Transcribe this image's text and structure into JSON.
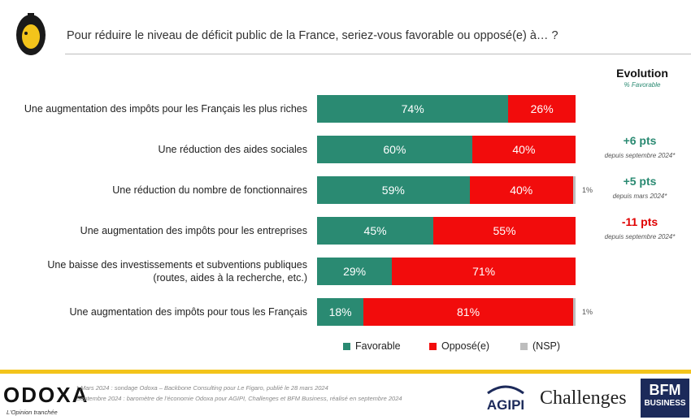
{
  "header": {
    "question": "Pour réduire le niveau de déficit public de la France, seriez-vous favorable ou opposé(e) à… ?"
  },
  "evolution": {
    "title": "Evolution",
    "subtitle": "% Favorable"
  },
  "chart_data": {
    "type": "bar",
    "orientation": "horizontal",
    "stacked": true,
    "categories": [
      "Une augmentation des impôts pour les Français les plus riches",
      "Une réduction des aides sociales",
      "Une réduction du nombre de fonctionnaires",
      "Une augmentation des impôts pour les entreprises",
      "Une baisse des investissements et subventions publiques (routes, aides à la recherche, etc.)",
      "Une augmentation des impôts pour tous les Français"
    ],
    "category_lines": [
      [
        "Une augmentation des impôts pour les Français les plus riches"
      ],
      [
        "Une réduction des aides sociales"
      ],
      [
        "Une réduction du nombre de fonctionnaires"
      ],
      [
        "Une augmentation des impôts pour les entreprises"
      ],
      [
        "Une baisse des investissements et subventions publiques",
        "(routes, aides à la recherche, etc.)"
      ],
      [
        "Une augmentation des impôts pour tous les Français"
      ]
    ],
    "series": [
      {
        "name": "Favorable",
        "color": "#2a8a72",
        "values": [
          74,
          60,
          59,
          45,
          29,
          18
        ]
      },
      {
        "name": "Opposé(e)",
        "color": "#f20c0c",
        "values": [
          26,
          40,
          40,
          55,
          71,
          81
        ]
      },
      {
        "name": "(NSP)",
        "color": "#bdbdbd",
        "values": [
          0,
          0,
          1,
          0,
          0,
          1
        ]
      }
    ],
    "value_labels": [
      [
        "74%",
        "26%",
        ""
      ],
      [
        "60%",
        "40%",
        ""
      ],
      [
        "59%",
        "40%",
        "1%"
      ],
      [
        "45%",
        "55%",
        ""
      ],
      [
        "29%",
        "71%",
        ""
      ],
      [
        "18%",
        "81%",
        "1%"
      ]
    ],
    "evolution": [
      {
        "value": "",
        "note": "",
        "color": ""
      },
      {
        "value": "+6 pts",
        "note": "depuis septembre 2024*",
        "color": "#2a8a72"
      },
      {
        "value": "+5 pts",
        "note": "depuis mars 2024*",
        "color": "#2a8a72"
      },
      {
        "value": "-11 pts",
        "note": "depuis septembre 2024*",
        "color": "#e00000"
      },
      {
        "value": "",
        "note": "",
        "color": ""
      },
      {
        "value": "",
        "note": "",
        "color": ""
      }
    ],
    "xlim": [
      0,
      100
    ],
    "legend_position": "bottom"
  },
  "footer": {
    "brand": "ODOXA",
    "tagline": "L'Opinion tranchée",
    "source_lines": [
      "* Mars 2024 : sondage Odoxa – Backbone Consulting pour Le Figaro, publié le 28 mars 2024",
      "Septembre 2024 : baromètre de l'économie Odoxa pour AGIPI, Challenges et BFM Business, réalisé en septembre 2024"
    ],
    "partners": {
      "agipi": "AGIPI",
      "challenges": "Challenges",
      "bfm_line1": "BFM",
      "bfm_line2": "BUSINESS"
    }
  }
}
